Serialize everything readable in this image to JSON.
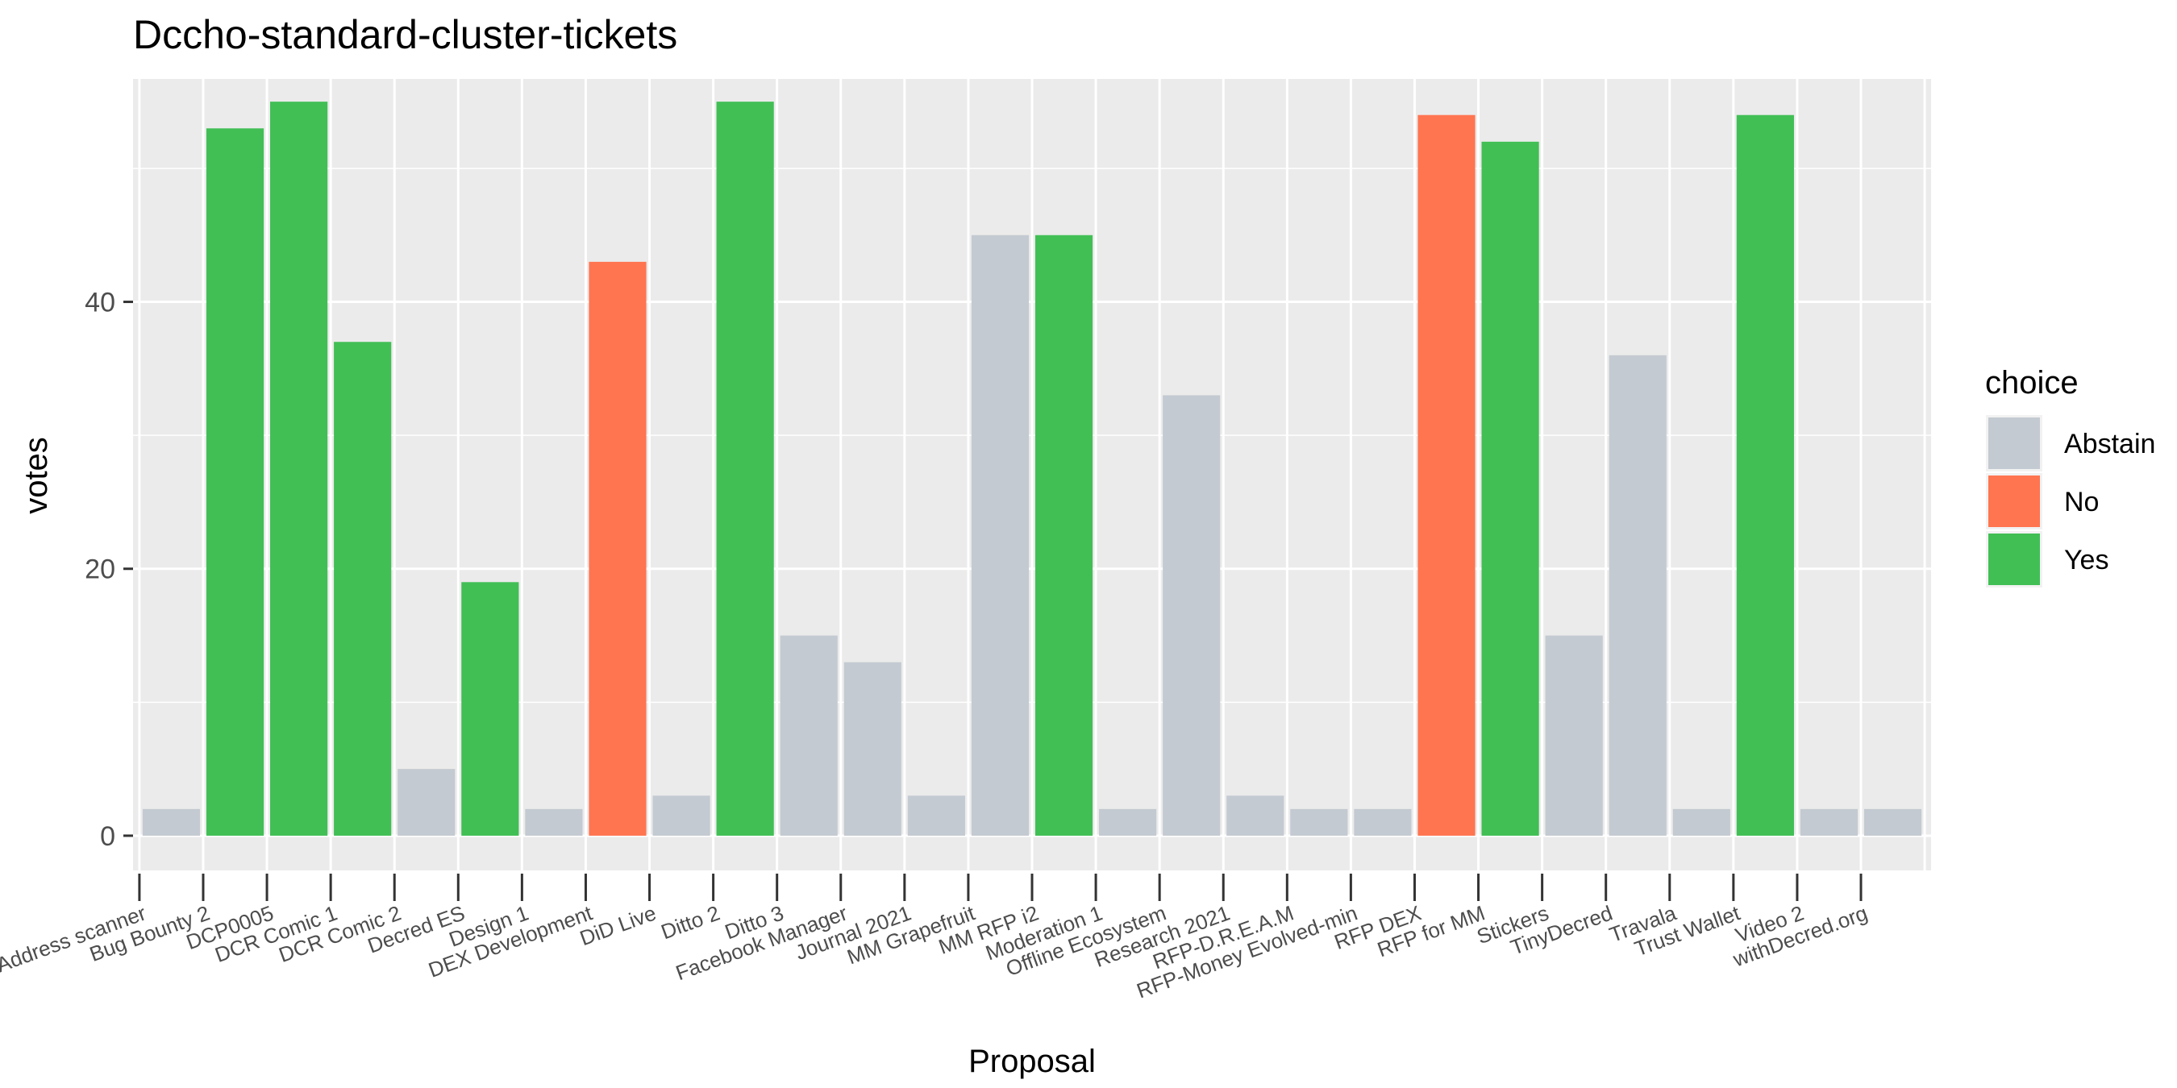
{
  "chart_data": {
    "type": "bar",
    "title": "Dccho-standard-cluster-tickets",
    "xlabel": "Proposal",
    "ylabel": "votes",
    "ylim": [
      -2.6,
      56.7
    ],
    "yticks": [
      0,
      20,
      40
    ],
    "grid": true,
    "legend": {
      "title": "choice",
      "placement": "right",
      "entries": [
        "Abstain",
        "No",
        "Yes"
      ]
    },
    "colors": {
      "Abstain": "#c4cad1",
      "No": "#ff7550",
      "Yes": "#41bf55"
    },
    "categories": [
      "Address scanner",
      "Bug Bounty 2",
      "DCP0005",
      "DCR Comic 1",
      "DCR Comic 2",
      "Decred ES",
      "Design 1",
      "DEX Development",
      "DiD Live",
      "Ditto 2",
      "Ditto 3",
      "Facebook Manager",
      "Journal 2021",
      "MM Grapefruit",
      "MM RFP i2",
      "Moderation 1",
      "Offline Ecosystem",
      "Research 2021",
      "RFP-D.R.E.A.M",
      "RFP-Money Evolved-min",
      "RFP DEX",
      "RFP for MM",
      "Stickers",
      "TinyDecred",
      "Travala",
      "Trust Wallet",
      "Video 2",
      "withDecred.org"
    ],
    "bars": [
      {
        "x": 0.5,
        "value": 2,
        "choice": "Abstain"
      },
      {
        "x": 1.5,
        "value": 53,
        "choice": "Yes"
      },
      {
        "x": 2.5,
        "value": 55,
        "choice": "Yes"
      },
      {
        "x": 3.5,
        "value": 37,
        "choice": "Yes"
      },
      {
        "x": 4.5,
        "value": 5,
        "choice": "Abstain"
      },
      {
        "x": 5.5,
        "value": 19,
        "choice": "Yes"
      },
      {
        "x": 6.5,
        "value": 2,
        "choice": "Abstain"
      },
      {
        "x": 7.5,
        "value": 43,
        "choice": "No"
      },
      {
        "x": 8.5,
        "value": 3,
        "choice": "Abstain"
      },
      {
        "x": 9.5,
        "value": 55,
        "choice": "Yes"
      },
      {
        "x": 10.5,
        "value": 15,
        "choice": "Abstain"
      },
      {
        "x": 11.5,
        "value": 13,
        "choice": "Abstain"
      },
      {
        "x": 12.5,
        "value": 3,
        "choice": "Abstain"
      },
      {
        "x": 13.5,
        "value": 45,
        "choice": "Abstain"
      },
      {
        "x": 14.5,
        "value": 45,
        "choice": "Yes"
      },
      {
        "x": 15.5,
        "value": 2,
        "choice": "Abstain"
      },
      {
        "x": 16.5,
        "value": 33,
        "choice": "Abstain"
      },
      {
        "x": 17.5,
        "value": 3,
        "choice": "Abstain"
      },
      {
        "x": 18.5,
        "value": 2,
        "choice": "Abstain"
      },
      {
        "x": 19.5,
        "value": 2,
        "choice": "Abstain"
      },
      {
        "x": 20.5,
        "value": 54,
        "choice": "No"
      },
      {
        "x": 21.5,
        "value": 52,
        "choice": "Yes"
      },
      {
        "x": 22.5,
        "value": 15,
        "choice": "Abstain"
      },
      {
        "x": 23.5,
        "value": 36,
        "choice": "Abstain"
      },
      {
        "x": 24.5,
        "value": 2,
        "choice": "Abstain"
      },
      {
        "x": 25.5,
        "value": 54,
        "choice": "Yes"
      },
      {
        "x": 26.5,
        "value": 2,
        "choice": "Abstain"
      },
      {
        "x": 27.5,
        "value": 2,
        "choice": "Abstain"
      }
    ]
  }
}
